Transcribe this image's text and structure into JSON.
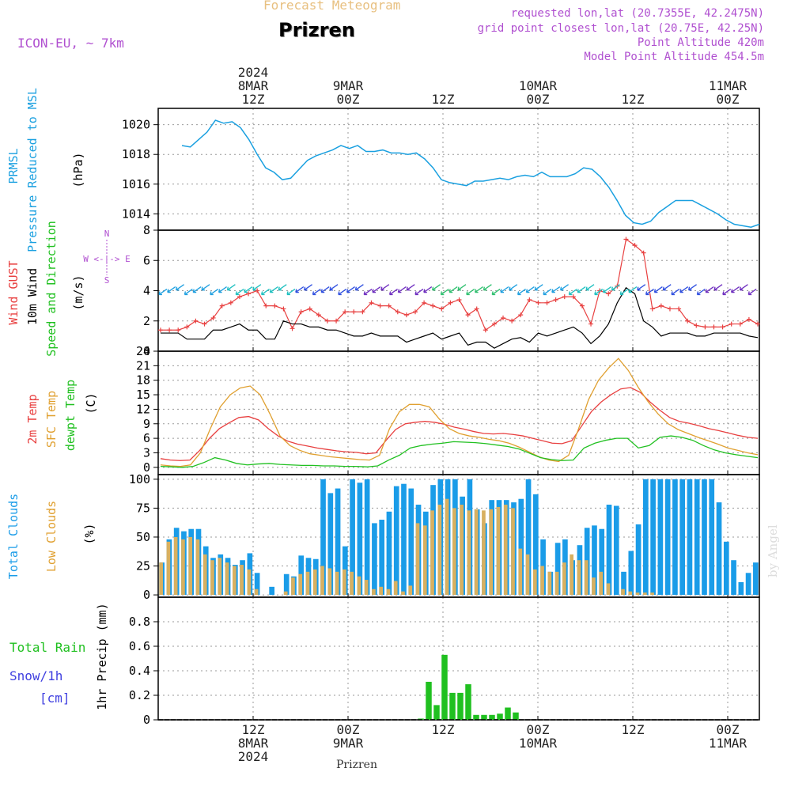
{
  "header": {
    "top_title": "Forecast Meteogram",
    "location": "Prizren",
    "model": "ICON-EU, ~ 7km",
    "requested": "requested lon,lat (20.7355E, 42.2475N)",
    "grid": "grid point closest lon,lat (20.75E, 42.25N)",
    "point_alt": "Point Altitude 420m",
    "model_alt": "Model Point Altitude 454.5m",
    "watermark": "by Angel",
    "bottom_location": "Prizren"
  },
  "colors": {
    "pressure": "#1aa0e0",
    "gust": "#e84040",
    "wind": "#000000",
    "temp2m": "#e84040",
    "sfc_temp": "#e0a030",
    "dewpt": "#20c020",
    "total_clouds": "#1a9ce8",
    "low_clouds": "#d8b060",
    "rain": "#20c020",
    "snow": "#4040e0",
    "meta": "#b050d0",
    "top_title": "#e8c080"
  },
  "time_axis": {
    "top_labels": [
      {
        "h": 12,
        "lines": [
          "2024",
          "8MAR",
          "12Z"
        ]
      },
      {
        "h": 24,
        "lines": [
          "9MAR",
          "00Z"
        ]
      },
      {
        "h": 36,
        "lines": [
          "12Z"
        ]
      },
      {
        "h": 48,
        "lines": [
          "10MAR",
          "00Z"
        ]
      },
      {
        "h": 60,
        "lines": [
          "12Z"
        ]
      },
      {
        "h": 72,
        "lines": [
          "11MAR",
          "00Z"
        ]
      }
    ],
    "bottom_labels": [
      {
        "h": 12,
        "lines": [
          "12Z",
          "8MAR",
          "2024"
        ]
      },
      {
        "h": 24,
        "lines": [
          "00Z",
          "9MAR"
        ]
      },
      {
        "h": 36,
        "lines": [
          "12Z"
        ]
      },
      {
        "h": 48,
        "lines": [
          "00Z",
          "10MAR"
        ]
      },
      {
        "h": 60,
        "lines": [
          "12Z"
        ]
      },
      {
        "h": 72,
        "lines": [
          "00Z",
          "11MAR"
        ]
      }
    ]
  },
  "chart_data": [
    {
      "type": "line",
      "ylabels": [
        "PRMSL",
        "Pressure Reduced to MSL",
        "(hPa)"
      ],
      "ylim": [
        1012.9,
        1021.1
      ],
      "yticks": [
        1014,
        1016,
        1018,
        1020
      ],
      "series": [
        {
          "name": "PRMSL",
          "values": [
            1018.6,
            1018.5,
            1019.0,
            1019.5,
            1020.3,
            1020.1,
            1020.2,
            1019.8,
            1019.0,
            1018.0,
            1017.1,
            1016.8,
            1016.3,
            1016.4,
            1017.0,
            1017.6,
            1017.9,
            1018.1,
            1018.3,
            1018.6,
            1018.4,
            1018.6,
            1018.2,
            1018.2,
            1018.3,
            1018.1,
            1018.1,
            1018.0,
            1018.1,
            1017.7,
            1017.1,
            1016.3,
            1016.1,
            1016.0,
            1015.9,
            1016.2,
            1016.2,
            1016.3,
            1016.4,
            1016.3,
            1016.5,
            1016.6,
            1016.5,
            1016.8,
            1016.5,
            1016.5,
            1016.5,
            1016.7,
            1017.1,
            1017.0,
            1016.5,
            1015.8,
            1014.9,
            1013.9,
            1013.4,
            1013.3,
            1013.5,
            1014.1,
            1014.5,
            1014.9,
            1014.9,
            1014.9,
            1014.6,
            1014.3,
            1014.0,
            1013.6,
            1013.3,
            1013.2,
            1013.1,
            1013.3
          ]
        }
      ]
    },
    {
      "type": "line",
      "ylabels": [
        "Wind GUST",
        "10m Wind",
        "Speed and Direction",
        "(m/s)"
      ],
      "compass": [
        "N",
        "W <-|-> E",
        "S"
      ],
      "ylim": [
        0,
        8
      ],
      "yticks": [
        0,
        2,
        4,
        6,
        8
      ],
      "series": [
        {
          "name": "Wind GUST",
          "values": [
            1.4,
            1.4,
            1.4,
            1.6,
            2.0,
            1.8,
            2.2,
            3.0,
            3.2,
            3.6,
            3.8,
            4.0,
            3.0,
            3.0,
            2.8,
            1.5,
            2.6,
            2.8,
            2.4,
            2.0,
            2.0,
            2.6,
            2.6,
            2.6,
            3.2,
            3.0,
            3.0,
            2.6,
            2.4,
            2.6,
            3.2,
            3.0,
            2.8,
            3.2,
            3.4,
            2.4,
            2.8,
            1.4,
            1.8,
            2.2,
            2.0,
            2.4,
            3.4,
            3.2,
            3.2,
            3.4,
            3.6,
            3.6,
            3.0,
            1.8,
            4.0,
            3.8,
            4.3,
            7.4,
            7.0,
            6.5,
            2.8,
            3.0,
            2.8,
            2.8,
            2.0,
            1.7,
            1.6,
            1.6,
            1.6,
            1.8,
            1.8,
            2.1,
            1.8
          ]
        },
        {
          "name": "10m Wind",
          "values": [
            1.2,
            1.2,
            1.2,
            0.8,
            0.8,
            0.8,
            1.4,
            1.4,
            1.6,
            1.8,
            1.4,
            1.4,
            0.8,
            0.8,
            2.0,
            1.8,
            1.8,
            1.6,
            1.6,
            1.4,
            1.4,
            1.2,
            1.0,
            1.0,
            1.2,
            1.0,
            1.0,
            1.0,
            0.6,
            0.8,
            1.0,
            1.2,
            0.8,
            1.0,
            1.2,
            0.4,
            0.6,
            0.6,
            0.2,
            0.5,
            0.8,
            0.9,
            0.6,
            1.2,
            1.0,
            1.2,
            1.4,
            1.6,
            1.2,
            0.5,
            1.0,
            1.8,
            3.2,
            4.2,
            3.8,
            2.0,
            1.6,
            1.0,
            1.2,
            1.2,
            1.2,
            1.0,
            1.0,
            1.2,
            1.2,
            1.2,
            1.2,
            1.0,
            0.9
          ]
        }
      ]
    },
    {
      "type": "line",
      "ylabels": [
        "2m Temp",
        "SFC Temp",
        "dewpt Temp",
        "(C)"
      ],
      "ylim": [
        -1.5,
        24
      ],
      "yticks": [
        0,
        3,
        6,
        9,
        12,
        15,
        18,
        21,
        24
      ],
      "series": [
        {
          "name": "2m Temp",
          "values": [
            1.8,
            1.5,
            1.4,
            1.5,
            3.5,
            6.0,
            8.0,
            9.2,
            10.3,
            10.5,
            9.8,
            8.0,
            6.5,
            5.4,
            4.8,
            4.4,
            4.0,
            3.7,
            3.4,
            3.2,
            3.1,
            2.8,
            3.0,
            5.5,
            7.8,
            9.0,
            9.3,
            9.5,
            9.3,
            8.9,
            8.3,
            7.9,
            7.4,
            7.0,
            6.9,
            7.0,
            6.8,
            6.5,
            6.0,
            5.5,
            5.0,
            4.9,
            5.5,
            8.5,
            11.5,
            13.5,
            15.0,
            16.2,
            16.5,
            15.5,
            13.5,
            11.8,
            10.3,
            9.5,
            9.1,
            8.6,
            8.0,
            7.6,
            7.1,
            6.6,
            6.2,
            6.0
          ]
        },
        {
          "name": "SFC Temp",
          "values": [
            0.5,
            0.3,
            0.2,
            0.5,
            3.0,
            8.0,
            12.5,
            15.0,
            16.4,
            16.8,
            15.0,
            11.0,
            6.5,
            4.5,
            3.5,
            2.8,
            2.5,
            2.2,
            2.0,
            1.8,
            1.6,
            1.5,
            2.5,
            8.0,
            11.5,
            13.0,
            13.0,
            12.5,
            10.0,
            8.0,
            7.0,
            6.5,
            6.2,
            5.8,
            5.5,
            5.0,
            4.2,
            3.2,
            2.2,
            1.5,
            1.2,
            2.5,
            8.0,
            14.0,
            18.0,
            20.5,
            22.5,
            20.0,
            16.5,
            13.5,
            11.0,
            9.0,
            7.8,
            7.0,
            6.2,
            5.5,
            4.8,
            4.0,
            3.5,
            3.0,
            2.6
          ]
        },
        {
          "name": "dewpt Temp",
          "values": [
            0.2,
            0.1,
            0.0,
            0.2,
            1.0,
            2.0,
            1.5,
            0.8,
            0.5,
            0.7,
            0.8,
            0.6,
            0.5,
            0.4,
            0.4,
            0.3,
            0.3,
            0.2,
            0.2,
            0.1,
            0.3,
            1.5,
            2.5,
            4.0,
            4.5,
            4.8,
            5.0,
            5.3,
            5.2,
            5.1,
            4.9,
            4.6,
            4.3,
            3.8,
            2.9,
            2.0,
            1.6,
            1.4,
            1.5,
            4.0,
            5.0,
            5.6,
            6.0,
            6.0,
            4.0,
            4.5,
            6.2,
            6.5,
            6.2,
            5.6,
            4.5,
            3.6,
            3.0,
            2.6,
            2.3,
            2.0
          ]
        }
      ]
    },
    {
      "type": "bar",
      "ylabels": [
        "Total Clouds",
        "Low Clouds",
        "(%)"
      ],
      "ylim": [
        -2,
        104
      ],
      "yticks": [
        0,
        25,
        50,
        75,
        100
      ],
      "series": [
        {
          "name": "Total Clouds",
          "values": [
            28,
            48,
            58,
            55,
            57,
            57,
            42,
            32,
            35,
            32,
            26,
            30,
            36,
            19,
            0,
            7,
            0,
            18,
            16,
            34,
            32,
            31,
            100,
            88,
            92,
            42,
            100,
            97,
            100,
            62,
            65,
            72,
            94,
            96,
            92,
            78,
            72,
            95,
            100,
            100,
            100,
            85,
            100,
            74,
            62,
            82,
            82,
            82,
            80,
            83,
            100,
            87,
            48,
            20,
            45,
            48,
            30,
            43,
            58,
            60,
            57,
            78,
            77,
            20,
            38,
            61,
            100,
            100,
            100,
            100,
            100,
            100,
            100,
            100,
            100,
            100,
            80,
            46,
            30,
            11,
            19,
            28
          ]
        },
        {
          "name": "Low Clouds",
          "values": [
            28,
            46,
            50,
            48,
            50,
            48,
            35,
            30,
            32,
            28,
            25,
            26,
            22,
            5,
            0,
            0,
            0,
            3,
            15,
            18,
            20,
            22,
            25,
            23,
            20,
            22,
            20,
            16,
            13,
            5,
            7,
            5,
            12,
            3,
            8,
            62,
            60,
            73,
            78,
            83,
            75,
            78,
            73,
            74,
            73,
            74,
            76,
            78,
            75,
            40,
            35,
            22,
            25,
            20,
            20,
            28,
            35,
            30,
            30,
            15,
            20,
            10,
            0,
            5,
            3,
            2,
            2,
            2,
            0,
            0,
            0,
            0,
            0,
            0,
            0,
            0,
            0,
            0,
            0,
            0,
            0,
            0
          ]
        }
      ]
    },
    {
      "type": "bar",
      "ylabels": [
        "Total Rain",
        "Snow/1h",
        "[cm]",
        "1hr Precip (mm)"
      ],
      "ylim": [
        0,
        1.0
      ],
      "yticks": [
        0,
        0.2,
        0.4,
        0.6,
        0.8
      ],
      "series": [
        {
          "name": "Total Rain",
          "values": [
            0.01,
            0.31,
            0.12,
            0.53,
            0.22,
            0.22,
            0.29,
            0.04,
            0.04,
            0.04,
            0.05,
            0.1,
            0.06
          ]
        }
      ]
    }
  ]
}
